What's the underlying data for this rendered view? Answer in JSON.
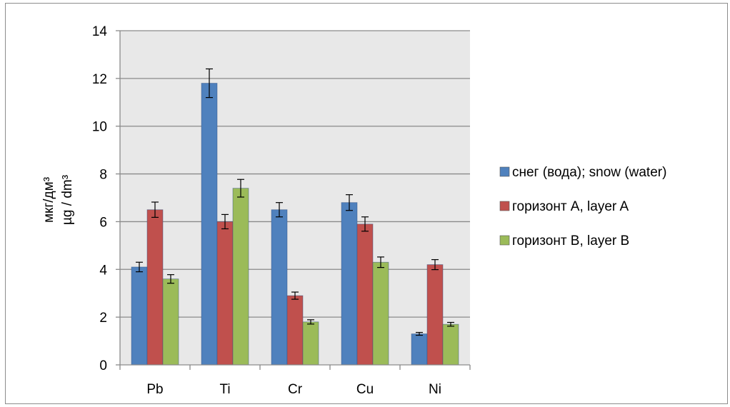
{
  "chart_data": {
    "type": "bar",
    "categories": [
      "Pb",
      "Ti",
      "Cr",
      "Cu",
      "Ni"
    ],
    "series": [
      {
        "name": "снег (вода); snow (water)",
        "color": "#4f81bd",
        "values": [
          4.1,
          11.8,
          6.5,
          6.8,
          1.3
        ],
        "errors": [
          0.2,
          0.6,
          0.3,
          0.33,
          0.06
        ]
      },
      {
        "name": "горизонт А, layer A",
        "color": "#c0504d",
        "values": [
          6.5,
          6.0,
          2.9,
          5.9,
          4.2
        ],
        "errors": [
          0.32,
          0.3,
          0.15,
          0.3,
          0.21
        ]
      },
      {
        "name": "горизонт В, layer B",
        "color": "#9bbb59",
        "values": [
          3.6,
          7.4,
          1.8,
          4.3,
          1.7
        ],
        "errors": [
          0.18,
          0.37,
          0.09,
          0.22,
          0.08
        ]
      }
    ],
    "ylabel_line1": "мкг/дм³",
    "ylabel_line2": "µg / dm³",
    "ylim": [
      0,
      14
    ],
    "yticks": [
      0,
      2,
      4,
      6,
      8,
      10,
      12,
      14
    ],
    "grid": true,
    "plot_background": "#e8e8e8",
    "legend_position": "right"
  }
}
